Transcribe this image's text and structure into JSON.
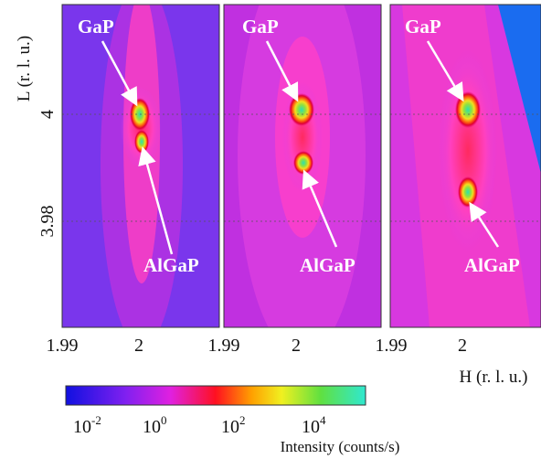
{
  "panels": [
    {
      "upper_label": "GaP",
      "lower_label": "AlGaP",
      "x_ticks": [
        "1.99",
        "2"
      ]
    },
    {
      "upper_label": "GaP",
      "lower_label": "AlGaP",
      "x_ticks": [
        "1.99",
        "2"
      ]
    },
    {
      "upper_label": "GaP",
      "lower_label": "AlGaP",
      "x_ticks": [
        "1.99",
        "2"
      ]
    }
  ],
  "y_axis": {
    "label": "L (r. l. u.)",
    "ticks": [
      "4",
      "3.98"
    ]
  },
  "x_axis": {
    "label": "H (r. l. u.)"
  },
  "colorbar": {
    "label": "Intensity (counts/s)",
    "ticks": [
      {
        "base": "10",
        "exp": "-2"
      },
      {
        "base": "10",
        "exp": "0"
      },
      {
        "base": "10",
        "exp": "2"
      },
      {
        "base": "10",
        "exp": "4"
      }
    ]
  }
}
